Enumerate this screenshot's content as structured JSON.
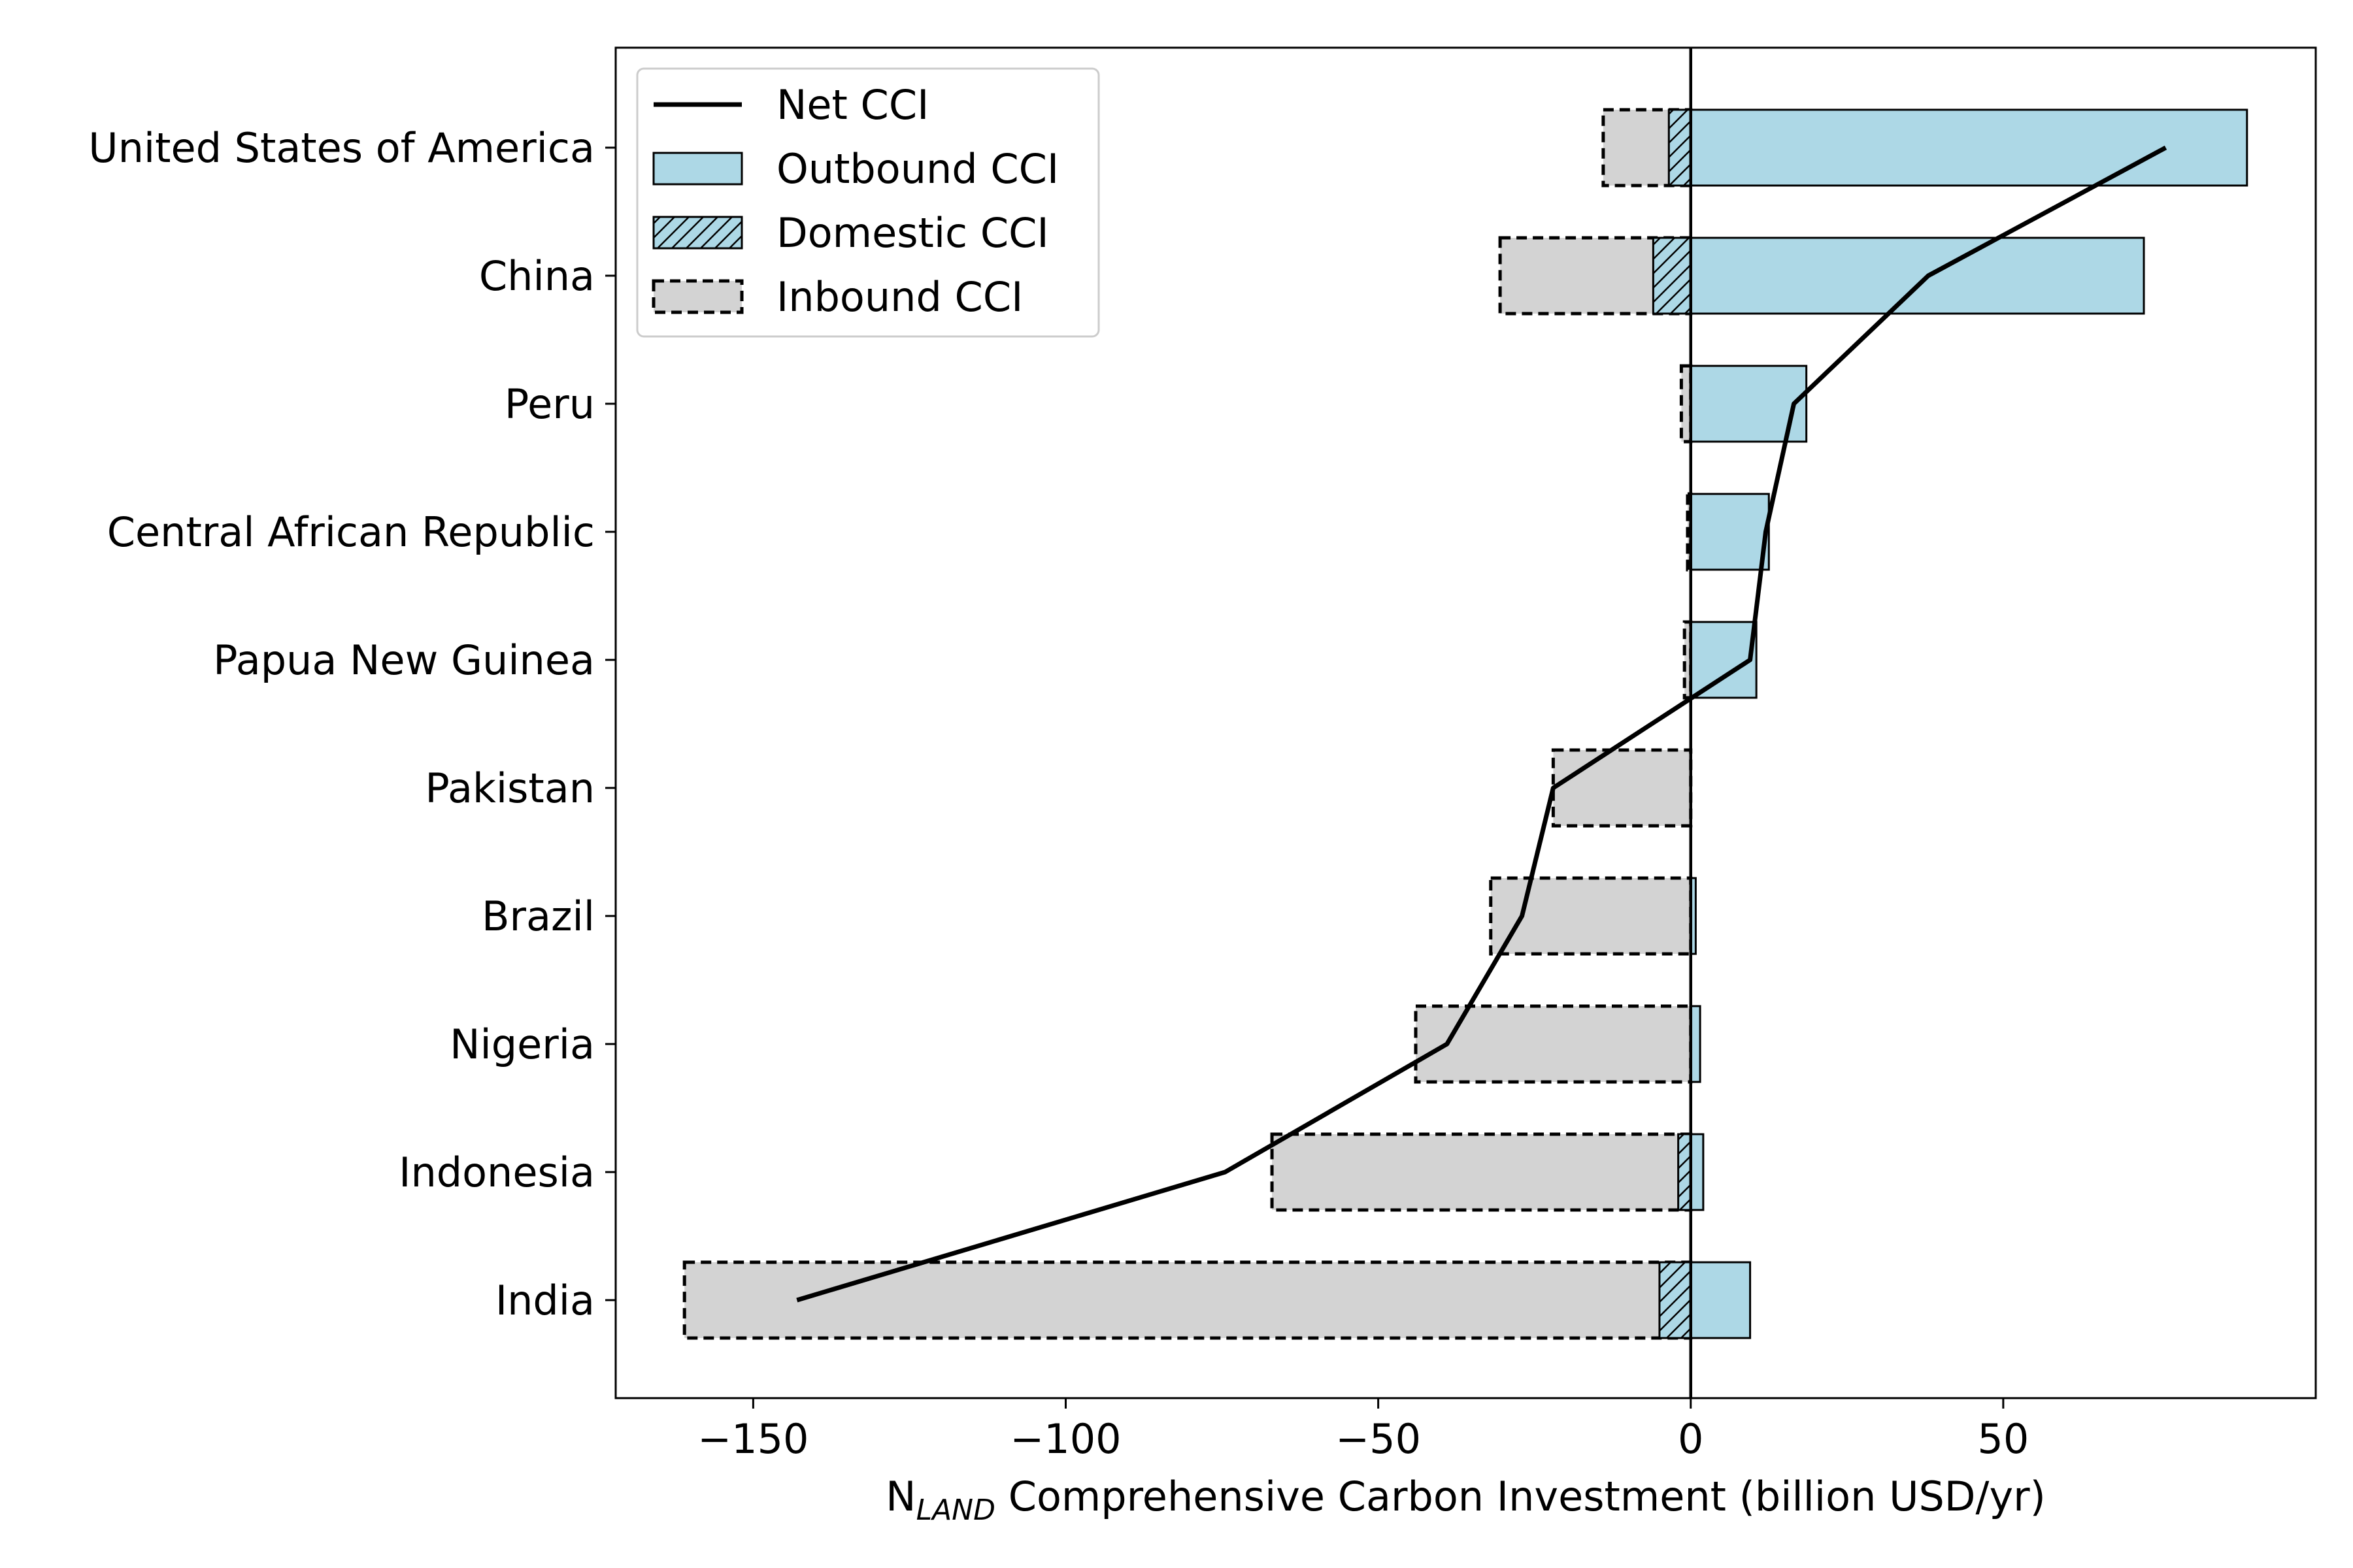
{
  "chart_data": {
    "type": "bar",
    "orientation": "horizontal",
    "categories": [
      "United States of America",
      "China",
      "Peru",
      "Central African Republic",
      "Papua New Guinea",
      "Pakistan",
      "Brazil",
      "Nigeria",
      "Indonesia",
      "India"
    ],
    "series": [
      {
        "name": "Outbound CCI",
        "values": [
          89,
          72.5,
          18.5,
          12.5,
          10.5,
          0,
          0.8,
          1.5,
          2,
          9.5
        ]
      },
      {
        "name": "Domestic CCI",
        "values": [
          3.5,
          6,
          0,
          0,
          0,
          0,
          0,
          0,
          2,
          5
        ]
      },
      {
        "name": "Inbound CCI",
        "values": [
          -14,
          -30.5,
          -1.5,
          -0.5,
          -1,
          -22,
          -32,
          -44,
          -67,
          -161
        ]
      },
      {
        "name": "Net CCI",
        "values": [
          76,
          38,
          16.5,
          12,
          9.5,
          -22,
          -27,
          -39,
          -74.5,
          -143
        ]
      }
    ],
    "xlabel_main": "N",
    "xlabel_sub": "LAND",
    "xlabel_rest": " Comprehensive Carbon Investment (billion USD/yr)",
    "xlim": [
      -172,
      100
    ],
    "xticks": [
      -150,
      -100,
      -50,
      0,
      50
    ],
    "xtick_labels": [
      "−150",
      "−100",
      "−50",
      "0",
      "50"
    ],
    "legend_position": "upper-left",
    "colors": {
      "outbound": "#add8e6",
      "inbound": "#d3d3d3",
      "line": "#000000"
    }
  }
}
